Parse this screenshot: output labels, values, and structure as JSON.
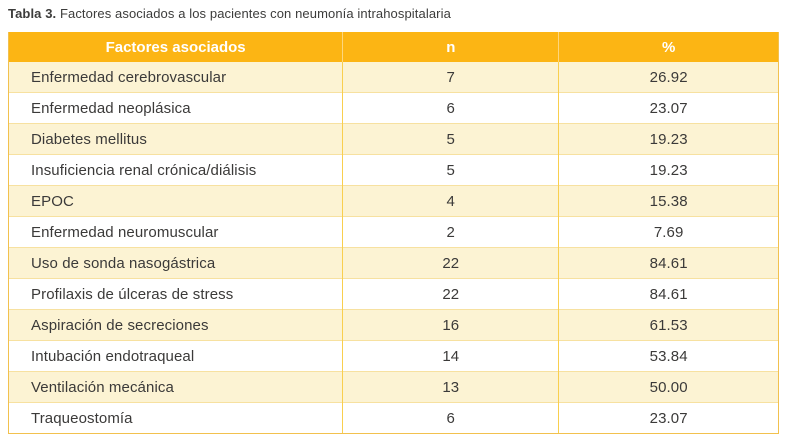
{
  "caption": {
    "label": "Tabla 3.",
    "text": " Factores asociados a los pacientes con neumonía intrahospitalaria"
  },
  "table": {
    "columns": {
      "factor": "Factores asociados",
      "n": "n",
      "pct": "%"
    },
    "rows": [
      {
        "factor": "Enfermedad cerebrovascular",
        "n": "7",
        "pct": "26.92"
      },
      {
        "factor": "Enfermedad neoplásica",
        "n": "6",
        "pct": "23.07"
      },
      {
        "factor": "Diabetes mellitus",
        "n": "5",
        "pct": "19.23"
      },
      {
        "factor": "Insuficiencia renal crónica/diálisis",
        "n": "5",
        "pct": "19.23"
      },
      {
        "factor": "EPOC",
        "n": "4",
        "pct": "15.38"
      },
      {
        "factor": "Enfermedad neuromuscular",
        "n": "2",
        "pct": "7.69"
      },
      {
        "factor": "Uso de sonda nasogástrica",
        "n": "22",
        "pct": "84.61"
      },
      {
        "factor": "Profilaxis de úlceras de stress",
        "n": "22",
        "pct": "84.61"
      },
      {
        "factor": "Aspiración de secreciones",
        "n": "16",
        "pct": "61.53"
      },
      {
        "factor": "Intubación endotraqueal",
        "n": "14",
        "pct": "53.84"
      },
      {
        "factor": "Ventilación mecánica",
        "n": "13",
        "pct": "50.00"
      },
      {
        "factor": "Traqueostomía",
        "n": "6",
        "pct": "23.07"
      }
    ]
  },
  "colors": {
    "header_bg": "#FCB514",
    "header_text": "#FFFFFF",
    "row_cream": "#FCF3D3",
    "row_white": "#FFFFFF",
    "grid_vertical": "#F9CF4E",
    "grid_horizontal": "#F7E1A0",
    "outer_border": "#F2C14E",
    "body_text": "#3B3A39",
    "caption_text": "#3C3C3B"
  }
}
